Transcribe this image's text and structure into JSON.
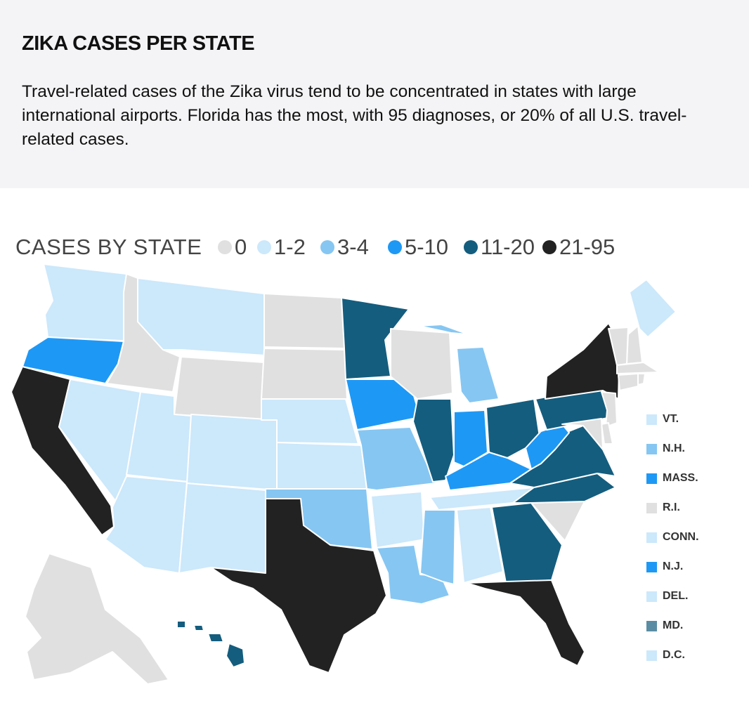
{
  "header": {
    "title": "ZIKA CASES PER STATE",
    "description": "Travel-related cases of the Zika virus tend to be concentrated in states with large international airports. Florida has the most, with 95 diagnoses, or 20% of all U.S. travel-related cases."
  },
  "legend": {
    "title": "CASES BY STATE",
    "bins": [
      {
        "label": "0",
        "color": "#e0e0e0"
      },
      {
        "label": "1-2",
        "color": "#cce8fb"
      },
      {
        "label": "3-4",
        "color": "#86c6f2"
      },
      {
        "label": "5-10",
        "color": "#1e98f5"
      },
      {
        "label": "11-20",
        "color": "#145d7e"
      },
      {
        "label": "21-95",
        "color": "#222222"
      }
    ]
  },
  "small_states": [
    {
      "label": "VT.",
      "color": "#cce8fb"
    },
    {
      "label": "N.H.",
      "color": "#86c6f2"
    },
    {
      "label": "MASS.",
      "color": "#1e98f5"
    },
    {
      "label": "R.I.",
      "color": "#e0e0e0"
    },
    {
      "label": "CONN.",
      "color": "#cce8fb"
    },
    {
      "label": "N.J.",
      "color": "#1e98f5"
    },
    {
      "label": "DEL.",
      "color": "#cce8fb"
    },
    {
      "label": "MD.",
      "color": "#145d7e"
    },
    {
      "label": "D.C.",
      "color": "#cce8fb"
    }
  ],
  "states": {
    "WA": "1-2",
    "OR": "5-10",
    "CA": "21-95",
    "ID": "0",
    "NV": "1-2",
    "MT": "1-2",
    "WY": "0",
    "UT": "1-2",
    "AZ": "1-2",
    "CO": "1-2",
    "NM": "1-2",
    "ND": "0",
    "SD": "0",
    "NE": "1-2",
    "KS": "1-2",
    "OK": "3-4",
    "TX": "21-95",
    "MN": "11-20",
    "IA": "5-10",
    "MO": "3-4",
    "AR": "1-2",
    "LA": "3-4",
    "WI": "0",
    "IL": "11-20",
    "MI": "3-4",
    "IN": "5-10",
    "OH": "11-20",
    "KY": "5-10",
    "TN": "1-2",
    "MS": "3-4",
    "AL": "1-2",
    "GA": "11-20",
    "FL": "21-95",
    "SC": "0",
    "NC": "11-20",
    "VA": "11-20",
    "WV": "5-10",
    "PA": "11-20",
    "NY": "21-95",
    "ME": "1-2",
    "AK": "0",
    "HI": "11-20"
  }
}
